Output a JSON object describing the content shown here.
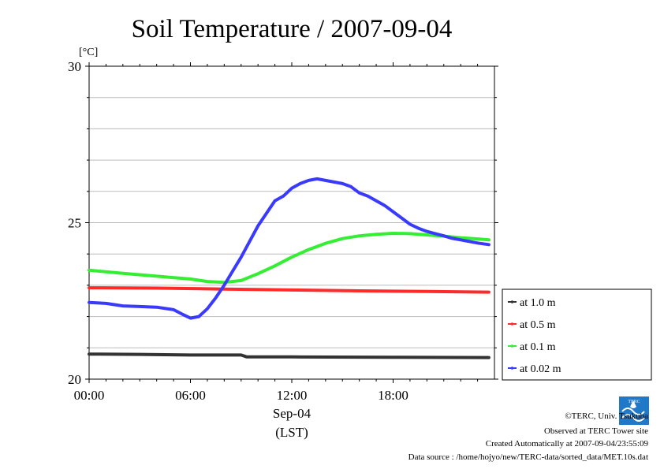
{
  "chart_data": {
    "type": "line",
    "title": "Soil Temperature / 2007-09-04",
    "y_unit": "[°C]",
    "ylim": [
      20,
      30
    ],
    "y_ticks": [
      "20",
      "25",
      "30"
    ],
    "xlim": [
      "00:00",
      "24:00"
    ],
    "x_ticks": [
      "00:00",
      "06:00",
      "12:00",
      "18:00"
    ],
    "xlabel_date": "Sep-04",
    "xlabel_tz": "(LST)",
    "grid": true,
    "legend_position": "right",
    "series": [
      {
        "name": "at 1.0 m",
        "color": "#333333",
        "points": [
          [
            "00:00",
            20.8
          ],
          [
            "03:00",
            20.79
          ],
          [
            "06:00",
            20.77
          ],
          [
            "09:00",
            20.77
          ],
          [
            "09:20",
            20.71
          ],
          [
            "12:00",
            20.71
          ],
          [
            "18:00",
            20.7
          ],
          [
            "23:40",
            20.69
          ]
        ]
      },
      {
        "name": "at 0.5 m",
        "color": "#ff2a2a",
        "points": [
          [
            "00:00",
            22.92
          ],
          [
            "04:00",
            22.91
          ],
          [
            "08:00",
            22.88
          ],
          [
            "12:00",
            22.85
          ],
          [
            "16:00",
            22.82
          ],
          [
            "20:00",
            22.8
          ],
          [
            "23:40",
            22.78
          ]
        ]
      },
      {
        "name": "at 0.1 m",
        "color": "#33ee33",
        "points": [
          [
            "00:00",
            23.48
          ],
          [
            "02:00",
            23.38
          ],
          [
            "04:00",
            23.29
          ],
          [
            "06:00",
            23.2
          ],
          [
            "07:00",
            23.12
          ],
          [
            "08:00",
            23.09
          ],
          [
            "09:00",
            23.15
          ],
          [
            "10:00",
            23.37
          ],
          [
            "11:00",
            23.62
          ],
          [
            "12:00",
            23.9
          ],
          [
            "13:00",
            24.14
          ],
          [
            "14:00",
            24.34
          ],
          [
            "15:00",
            24.49
          ],
          [
            "16:00",
            24.58
          ],
          [
            "17:00",
            24.63
          ],
          [
            "18:00",
            24.66
          ],
          [
            "19:00",
            24.65
          ],
          [
            "20:00",
            24.61
          ],
          [
            "21:00",
            24.57
          ],
          [
            "22:00",
            24.52
          ],
          [
            "23:00",
            24.48
          ],
          [
            "23:40",
            24.45
          ]
        ]
      },
      {
        "name": "at 0.02 m",
        "color": "#3a3aff",
        "points": [
          [
            "00:00",
            22.45
          ],
          [
            "01:00",
            22.42
          ],
          [
            "02:00",
            22.34
          ],
          [
            "03:00",
            22.32
          ],
          [
            "04:00",
            22.3
          ],
          [
            "05:00",
            22.22
          ],
          [
            "05:30",
            22.08
          ],
          [
            "06:00",
            21.95
          ],
          [
            "06:30",
            22.0
          ],
          [
            "07:00",
            22.25
          ],
          [
            "07:30",
            22.6
          ],
          [
            "08:00",
            23.0
          ],
          [
            "08:30",
            23.45
          ],
          [
            "09:00",
            23.9
          ],
          [
            "09:30",
            24.4
          ],
          [
            "10:00",
            24.9
          ],
          [
            "10:30",
            25.3
          ],
          [
            "11:00",
            25.7
          ],
          [
            "11:30",
            25.85
          ],
          [
            "12:00",
            26.1
          ],
          [
            "12:30",
            26.25
          ],
          [
            "13:00",
            26.35
          ],
          [
            "13:30",
            26.4
          ],
          [
            "14:00",
            26.35
          ],
          [
            "14:30",
            26.3
          ],
          [
            "15:00",
            26.25
          ],
          [
            "15:30",
            26.15
          ],
          [
            "16:00",
            25.95
          ],
          [
            "16:30",
            25.85
          ],
          [
            "17:00",
            25.7
          ],
          [
            "17:30",
            25.55
          ],
          [
            "18:00",
            25.35
          ],
          [
            "18:30",
            25.15
          ],
          [
            "19:00",
            24.95
          ],
          [
            "19:30",
            24.82
          ],
          [
            "20:00",
            24.72
          ],
          [
            "20:30",
            24.65
          ],
          [
            "21:00",
            24.58
          ],
          [
            "21:30",
            24.5
          ],
          [
            "22:00",
            24.45
          ],
          [
            "22:30",
            24.4
          ],
          [
            "23:00",
            24.35
          ],
          [
            "23:40",
            24.3
          ]
        ]
      }
    ]
  },
  "footer": {
    "copyright": "©TERC, Univ. Tsukuba",
    "observed": "Observed at TERC Tower site",
    "created": "Created Automatically at 2007-09-04/23:55:09",
    "source": "Data source : /home/hojyo/new/TERC-data/sorted_data/MET.10s.dat"
  },
  "logo": {
    "text": "TERC",
    "color": "#1f78c8"
  }
}
